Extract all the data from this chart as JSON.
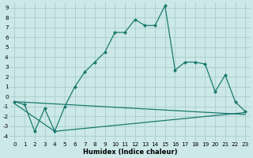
{
  "xlabel": "Humidex (Indice chaleur)",
  "bg_color": "#cce8e8",
  "grid_color": "#aacccc",
  "line_color": "#1a7a6e",
  "xlim": [
    -0.5,
    23.5
  ],
  "ylim": [
    -4.5,
    9.5
  ],
  "xticks": [
    0,
    1,
    2,
    3,
    4,
    5,
    6,
    7,
    8,
    9,
    10,
    11,
    12,
    13,
    14,
    15,
    16,
    17,
    18,
    19,
    20,
    21,
    22,
    23
  ],
  "yticks": [
    -4,
    -3,
    -2,
    -1,
    0,
    1,
    2,
    3,
    4,
    5,
    6,
    7,
    8,
    9
  ],
  "series1_x": [
    0,
    1,
    2,
    3,
    4,
    5,
    6,
    7,
    8,
    9,
    10,
    11,
    12,
    13,
    14,
    15,
    16,
    17,
    18,
    19,
    20,
    21,
    22,
    23
  ],
  "series1_y": [
    -0.5,
    -0.8,
    -3.5,
    -1.2,
    -3.5,
    -1.0,
    1.0,
    2.5,
    3.5,
    4.5,
    6.5,
    6.5,
    7.8,
    7.2,
    7.2,
    9.2,
    2.7,
    3.5,
    3.5,
    3.3,
    0.5,
    2.2,
    -0.5,
    -1.5
  ],
  "series2_x": [
    0,
    23
  ],
  "series2_y": [
    -0.5,
    -1.8
  ],
  "series3_x": [
    0,
    4,
    23
  ],
  "series3_y": [
    -0.7,
    -3.5,
    -1.6
  ],
  "xlabel_fontsize": 6.0,
  "tick_fontsize": 5.2
}
